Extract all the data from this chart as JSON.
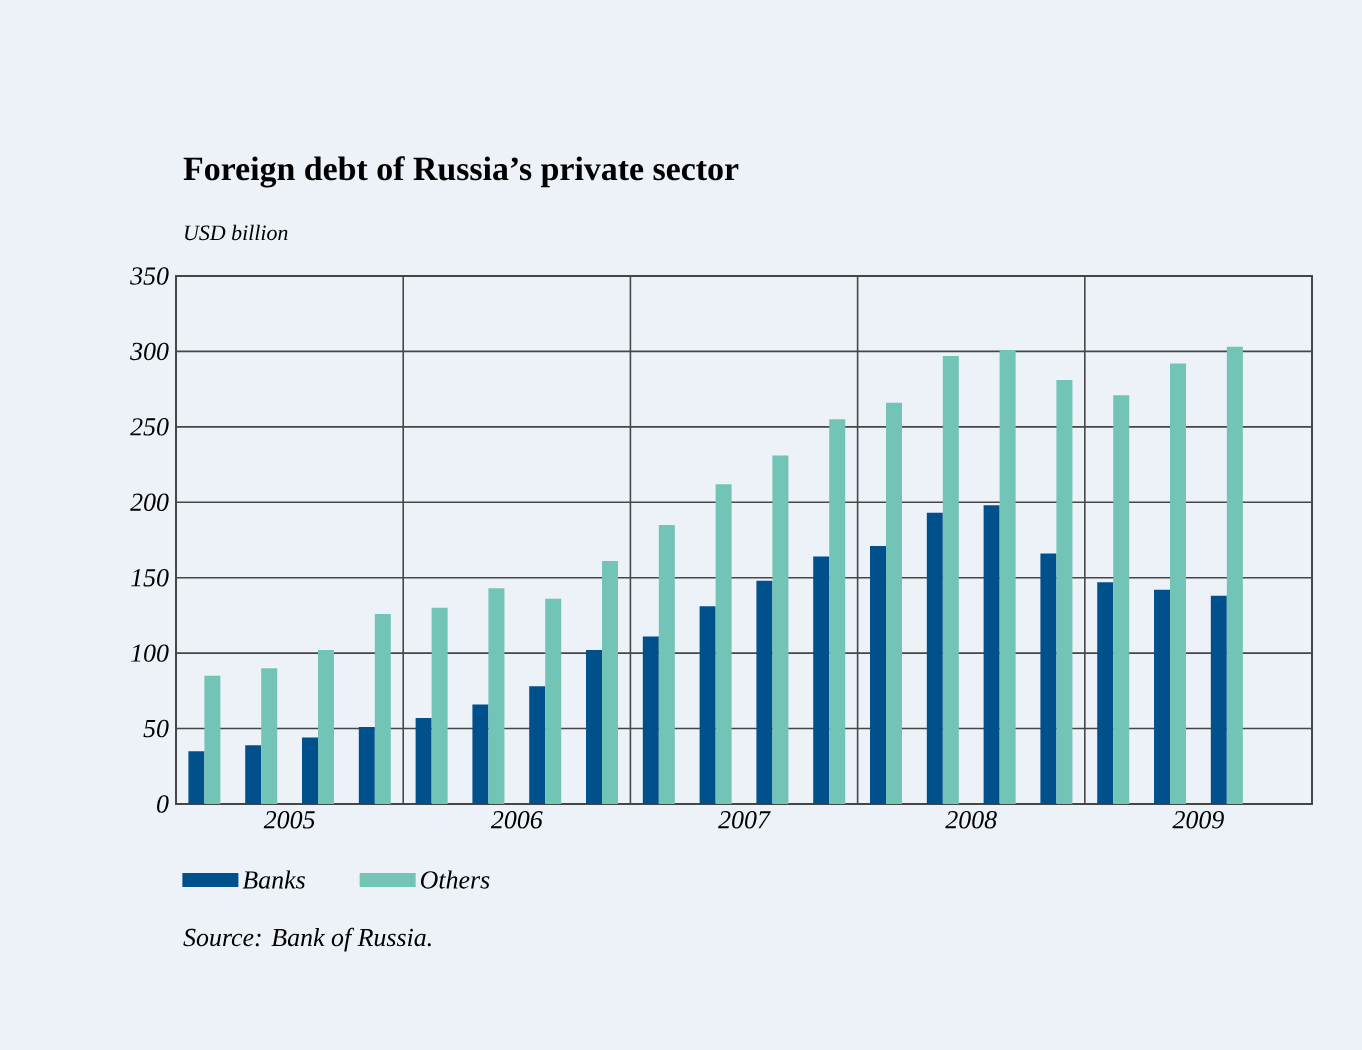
{
  "chart_data": {
    "type": "bar",
    "title": "Foreign debt of Russia’s private sector",
    "ylabel": "USD billion",
    "x": [
      2005.125,
      2005.375,
      2005.625,
      2005.875,
      2006.125,
      2006.375,
      2006.625,
      2006.875,
      2007.125,
      2007.375,
      2007.625,
      2007.875,
      2008.125,
      2008.375,
      2008.625,
      2008.875,
      2009.125,
      2009.375,
      2009.625
    ],
    "series": [
      {
        "name": "Banks",
        "color": "#00508c",
        "values": [
          35,
          39,
          44,
          51,
          57,
          66,
          78,
          102,
          111,
          131,
          148,
          164,
          171,
          193,
          198,
          166,
          147,
          142,
          138
        ]
      },
      {
        "name": "Others",
        "color": "#72c4b6",
        "values": [
          85,
          90,
          102,
          126,
          130,
          143,
          136,
          161,
          185,
          212,
          231,
          255,
          266,
          297,
          301,
          281,
          271,
          292,
          303
        ]
      }
    ],
    "xlim": [
      2005,
      2010
    ],
    "ylim": [
      0,
      350
    ],
    "xticks": [
      {
        "value": 2005.5,
        "label": "2005"
      },
      {
        "value": 2006.5,
        "label": "2006"
      },
      {
        "value": 2007.5,
        "label": "2007"
      },
      {
        "value": 2008.5,
        "label": "2008"
      },
      {
        "value": 2009.5,
        "label": "2009"
      }
    ],
    "yticks": [
      0,
      50,
      100,
      150,
      200,
      250,
      300,
      350
    ],
    "ref_lines": [
      {
        "axis": "x",
        "value": 2006
      },
      {
        "axis": "x",
        "value": 2007
      },
      {
        "axis": "x",
        "value": 2008
      },
      {
        "axis": "x",
        "value": 2009
      }
    ],
    "grid": "y",
    "legend": "bottom",
    "annotations": [
      "Source: Bank of Russia."
    ]
  }
}
